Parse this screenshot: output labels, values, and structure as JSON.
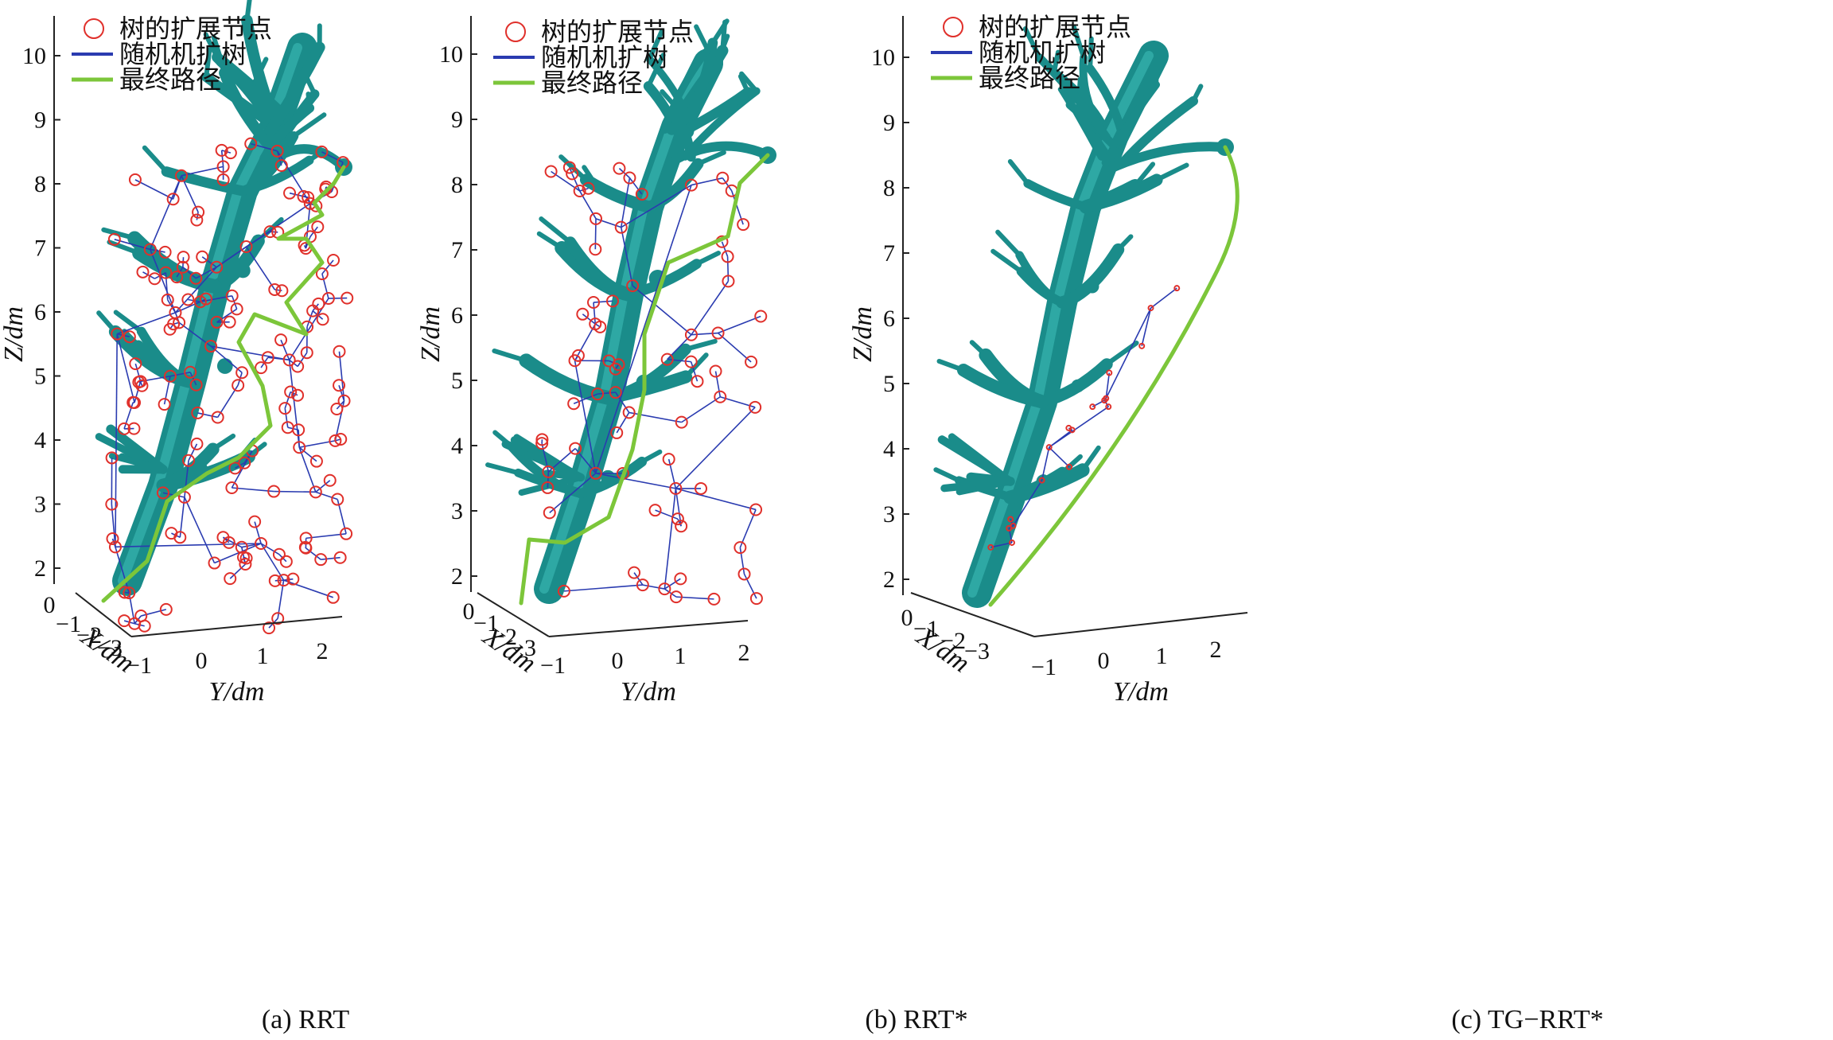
{
  "legend": {
    "nodes": "树的扩展节点",
    "tree": "随机机扩树",
    "path": "最终路径"
  },
  "colors": {
    "vessel": "#1a8c8a",
    "tree_edge": "#2a3bb0",
    "node": "#e0302b",
    "final_path": "#7cc63a"
  },
  "chart_data": [
    {
      "type": "scatter",
      "caption": "(a) RRT",
      "xlabel": "X/dm",
      "ylabel": "Y/dm",
      "zlabel": "Z/dm",
      "x_ticks": [
        "0",
        "−1",
        "−2",
        "−3"
      ],
      "y_ticks": [
        "−1",
        "0",
        "1",
        "2"
      ],
      "z_ticks": [
        "2",
        "3",
        "4",
        "5",
        "6",
        "7",
        "8",
        "9",
        "10"
      ],
      "series": [
        {
          "name": "树的扩展节点",
          "marker": "circle"
        },
        {
          "name": "随机机扩树",
          "marker": "line"
        },
        {
          "name": "最终路径",
          "marker": "line"
        }
      ]
    },
    {
      "type": "scatter",
      "caption": "(b) RRT*",
      "xlabel": "X/dm",
      "ylabel": "Y/dm",
      "zlabel": "Z/dm",
      "x_ticks": [
        "0",
        "−1",
        "−2",
        "−3"
      ],
      "y_ticks": [
        "−1",
        "0",
        "1",
        "2"
      ],
      "z_ticks": [
        "2",
        "3",
        "4",
        "5",
        "6",
        "7",
        "8",
        "9",
        "10"
      ],
      "series": [
        {
          "name": "树的扩展节点",
          "marker": "circle"
        },
        {
          "name": "随机机扩树",
          "marker": "line"
        },
        {
          "name": "最终路径",
          "marker": "line"
        }
      ]
    },
    {
      "type": "scatter",
      "caption": "(c) TG−RRT*",
      "xlabel": "X/dm",
      "ylabel": "Y/dm",
      "zlabel": "Z/dm",
      "x_ticks": [
        "0",
        "−1",
        "−2",
        "−3"
      ],
      "y_ticks": [
        "−1",
        "0",
        "1",
        "2"
      ],
      "z_ticks": [
        "2",
        "3",
        "4",
        "5",
        "6",
        "7",
        "8",
        "9",
        "10"
      ],
      "series": [
        {
          "name": "树的扩展节点",
          "marker": "circle"
        },
        {
          "name": "随机机扩树",
          "marker": "line"
        },
        {
          "name": "最终路径",
          "marker": "line"
        }
      ]
    }
  ]
}
